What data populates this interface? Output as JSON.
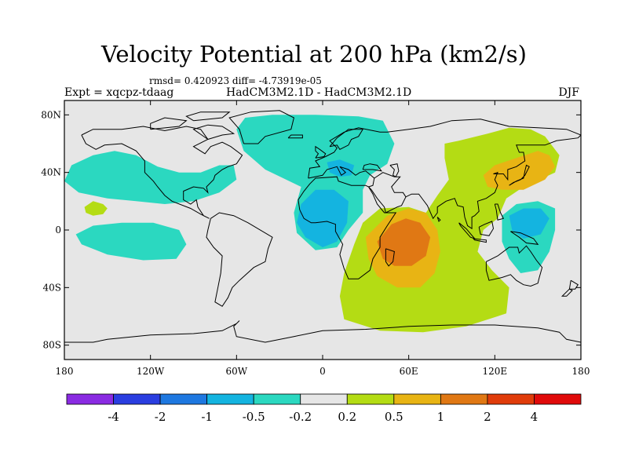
{
  "chart_data": {
    "type": "map-contour",
    "title": "Velocity Potential at 200 hPa (km2/s)",
    "stats_line": "rmsd= 0.420923  diff= -4.73919e-05",
    "left_label": "Expt = xqcpz-tdaag",
    "center_label": "HadCM3M2.1D - HadCM3M2.1D",
    "right_label": "DJF",
    "lon_range": [
      -180,
      180
    ],
    "lat_range": [
      -90,
      90
    ],
    "x_ticks": [
      {
        "lon": -180,
        "label": "180"
      },
      {
        "lon": -120,
        "label": "120W"
      },
      {
        "lon": -60,
        "label": "60W"
      },
      {
        "lon": 0,
        "label": "0"
      },
      {
        "lon": 60,
        "label": "60E"
      },
      {
        "lon": 120,
        "label": "120E"
      },
      {
        "lon": 180,
        "label": "180"
      }
    ],
    "y_ticks": [
      {
        "lat": 80,
        "label": "80N"
      },
      {
        "lat": 40,
        "label": "40N"
      },
      {
        "lat": 0,
        "label": "0"
      },
      {
        "lat": -40,
        "label": "40S"
      },
      {
        "lat": -80,
        "label": "80S"
      }
    ],
    "colorbar": {
      "colors": [
        "#8a2be2",
        "#2a3ee0",
        "#1e78e0",
        "#14b4e0",
        "#2bd8c0",
        "#e6e6e6",
        "#b4dc14",
        "#e8b414",
        "#e07814",
        "#e03c0a",
        "#e00a0a"
      ],
      "labels": [
        "-4",
        "-2",
        "-1",
        "-0.5",
        "-0.2",
        "0.2",
        "0.5",
        "1",
        "2",
        "4"
      ]
    },
    "regions": [
      {
        "level": "-0.5 to -0.2",
        "desc": "N Pacific to W Atlantic",
        "poly": [
          [
            -180,
            34
          ],
          [
            -175,
            45
          ],
          [
            -160,
            52
          ],
          [
            -145,
            55
          ],
          [
            -130,
            52
          ],
          [
            -115,
            44
          ],
          [
            -100,
            40
          ],
          [
            -85,
            40
          ],
          [
            -72,
            45
          ],
          [
            -62,
            45
          ],
          [
            -60,
            35
          ],
          [
            -72,
            26
          ],
          [
            -90,
            20
          ],
          [
            -110,
            18
          ],
          [
            -130,
            20
          ],
          [
            -150,
            22
          ],
          [
            -170,
            26
          ]
        ]
      },
      {
        "level": "-0.5 to -0.2",
        "desc": "Tropical E Pacific",
        "poly": [
          [
            -172,
            -3
          ],
          [
            -160,
            3
          ],
          [
            -140,
            5
          ],
          [
            -118,
            5
          ],
          [
            -100,
            0
          ],
          [
            -95,
            -10
          ],
          [
            -102,
            -20
          ],
          [
            -125,
            -21
          ],
          [
            -150,
            -17
          ],
          [
            -168,
            -10
          ]
        ]
      },
      {
        "level": "-0.5 to -0.2",
        "desc": "Atlantic / Europe / N Africa",
        "poly": [
          [
            -54,
            78
          ],
          [
            -35,
            80
          ],
          [
            -5,
            80
          ],
          [
            25,
            79
          ],
          [
            42,
            76
          ],
          [
            50,
            60
          ],
          [
            45,
            46
          ],
          [
            33,
            38
          ],
          [
            28,
            28
          ],
          [
            28,
            12
          ],
          [
            18,
            0
          ],
          [
            10,
            -12
          ],
          [
            -5,
            -14
          ],
          [
            -18,
            -2
          ],
          [
            -20,
            12
          ],
          [
            -15,
            30
          ],
          [
            -40,
            42
          ],
          [
            -55,
            55
          ],
          [
            -60,
            70
          ]
        ]
      },
      {
        "level": "-0.5 to -0.2",
        "desc": "Maritime continent",
        "poly": [
          [
            125,
            10
          ],
          [
            135,
            18
          ],
          [
            150,
            20
          ],
          [
            162,
            15
          ],
          [
            162,
            0
          ],
          [
            158,
            -15
          ],
          [
            150,
            -28
          ],
          [
            138,
            -30
          ],
          [
            130,
            -20
          ],
          [
            125,
            -8
          ]
        ]
      },
      {
        "level": "0.2 to 0.5",
        "desc": "Small positive near dateline",
        "poly": [
          [
            -166,
            16
          ],
          [
            -160,
            20
          ],
          [
            -153,
            18
          ],
          [
            -150,
            15
          ],
          [
            -153,
            11
          ],
          [
            -160,
            10
          ],
          [
            -165,
            12
          ]
        ]
      },
      {
        "level": "0.2 to 0.5",
        "desc": "Asia / Indian Ocean / Southern Ocean",
        "poly": [
          [
            85,
            60
          ],
          [
            95,
            62
          ],
          [
            115,
            67
          ],
          [
            130,
            71
          ],
          [
            145,
            70
          ],
          [
            155,
            65
          ],
          [
            165,
            52
          ],
          [
            162,
            40
          ],
          [
            140,
            30
          ],
          [
            128,
            22
          ],
          [
            122,
            8
          ],
          [
            112,
            0
          ],
          [
            108,
            -15
          ],
          [
            118,
            -28
          ],
          [
            130,
            -40
          ],
          [
            128,
            -58
          ],
          [
            100,
            -67
          ],
          [
            70,
            -71
          ],
          [
            40,
            -70
          ],
          [
            15,
            -62
          ],
          [
            12,
            -46
          ],
          [
            15,
            -30
          ],
          [
            22,
            -10
          ],
          [
            28,
            5
          ],
          [
            40,
            15
          ],
          [
            60,
            16
          ],
          [
            72,
            12
          ],
          [
            80,
            24
          ],
          [
            88,
            35
          ],
          [
            85,
            50
          ]
        ]
      },
      {
        "level": "0.5 to 1",
        "desc": "E Asia / W Pacific",
        "poly": [
          [
            112,
            38
          ],
          [
            120,
            45
          ],
          [
            135,
            50
          ],
          [
            150,
            55
          ],
          [
            158,
            52
          ],
          [
            162,
            44
          ],
          [
            155,
            35
          ],
          [
            140,
            28
          ],
          [
            125,
            28
          ],
          [
            115,
            30
          ]
        ]
      },
      {
        "level": "0.5 to 1",
        "desc": "Indian Ocean / E Africa",
        "poly": [
          [
            30,
            -5
          ],
          [
            45,
            10
          ],
          [
            60,
            15
          ],
          [
            72,
            12
          ],
          [
            80,
            0
          ],
          [
            82,
            -15
          ],
          [
            78,
            -30
          ],
          [
            68,
            -40
          ],
          [
            52,
            -40
          ],
          [
            38,
            -32
          ],
          [
            32,
            -20
          ]
        ]
      },
      {
        "level": "1 to 2",
        "desc": "W Indian Ocean max",
        "poly": [
          [
            38,
            -8
          ],
          [
            48,
            4
          ],
          [
            58,
            8
          ],
          [
            68,
            5
          ],
          [
            75,
            -5
          ],
          [
            72,
            -18
          ],
          [
            62,
            -25
          ],
          [
            50,
            -25
          ],
          [
            42,
            -20
          ]
        ]
      },
      {
        "level": "-1 to -0.5",
        "desc": "Mediterranean",
        "poly": [
          [
            3,
            47
          ],
          [
            12,
            49
          ],
          [
            22,
            45
          ],
          [
            20,
            38
          ],
          [
            12,
            37
          ],
          [
            5,
            40
          ]
        ]
      },
      {
        "level": "-1 to -0.5",
        "desc": "W Africa / Atlantic",
        "poly": [
          [
            -15,
            18
          ],
          [
            -5,
            28
          ],
          [
            8,
            28
          ],
          [
            18,
            20
          ],
          [
            17,
            5
          ],
          [
            10,
            -8
          ],
          [
            0,
            -12
          ],
          [
            -12,
            -5
          ],
          [
            -18,
            5
          ]
        ]
      },
      {
        "level": "-1 to -0.5",
        "desc": "Tropical W Pacific",
        "poly": [
          [
            130,
            10
          ],
          [
            140,
            15
          ],
          [
            152,
            15
          ],
          [
            158,
            8
          ],
          [
            152,
            -3
          ],
          [
            140,
            -6
          ],
          [
            132,
            0
          ]
        ]
      }
    ]
  }
}
